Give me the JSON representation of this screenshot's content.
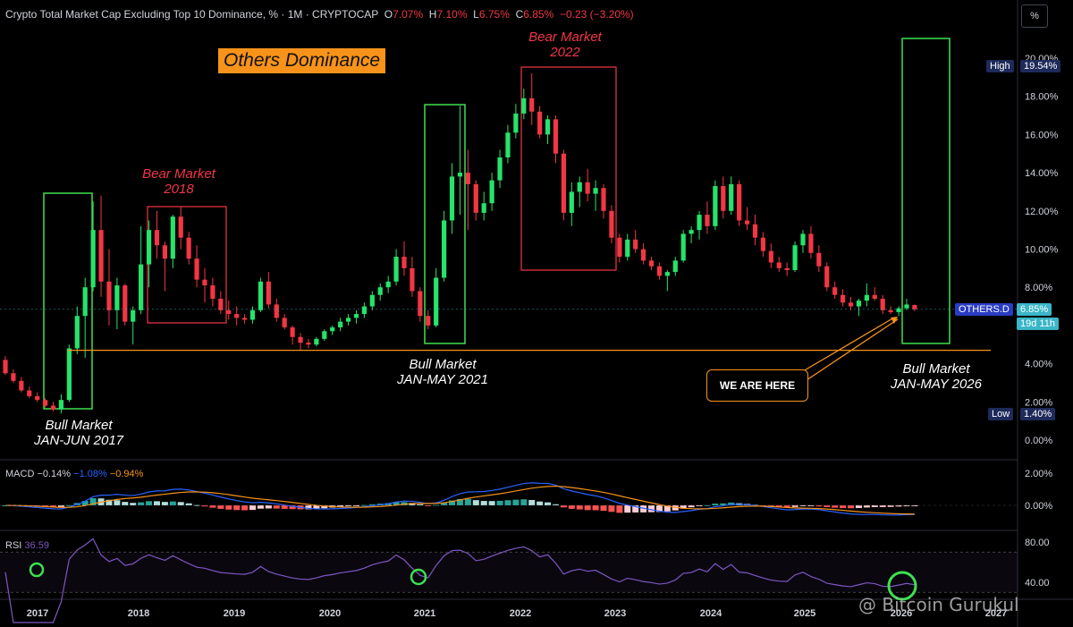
{
  "header": {
    "symbol": "Crypto Total Market Cap Excluding Top 10 Dominance, % · 1M · CRYPTOCAP",
    "o_label": "O",
    "o": "7.07%",
    "h_label": "H",
    "h": "7.10%",
    "l_label": "L",
    "l": "6.75%",
    "c_label": "C",
    "c": "6.85%",
    "change": "−0.23 (−3.20%)"
  },
  "scale_button": "%",
  "title_badge": "Others Dominance",
  "annotations": {
    "bull_2017": [
      "Bull Market",
      "JAN-JUN 2017"
    ],
    "bear_2018": [
      "Bear Market",
      "2018"
    ],
    "bull_2021": [
      "Bull Market",
      "JAN-MAY 2021"
    ],
    "bear_2022": [
      "Bear Market",
      "2022"
    ],
    "bull_2026": [
      "Bull Market",
      "JAN-MAY 2026"
    ],
    "we_are_here": "WE ARE HERE"
  },
  "price_tags": {
    "high_label": "High",
    "high_value": "19.54%",
    "low_label": "Low",
    "low_value": "1.40%",
    "symbol_tag": "OTHERS.D",
    "last_value": "6.85%",
    "countdown": "19d 11h"
  },
  "macd_legend": {
    "name": "MACD",
    "v1": "−0.14%",
    "v2": "−1.08%",
    "v3": "−0.94%"
  },
  "rsi_legend": {
    "name": "RSI",
    "v": "36.59"
  },
  "watermark": "@ Bitcoin Gurukul",
  "colors": {
    "up": "#26e36b",
    "down": "#f23645",
    "bull_box": "#3ee04f",
    "bear_box": "#f23645",
    "support": "#f7931a",
    "macd_line": "#2962ff",
    "signal_line": "#f7931a",
    "rsi_line": "#7e57c2"
  },
  "chart_data": {
    "type": "candlestick",
    "title": "Crypto Total Market Cap Excluding Top 10 Dominance, % · 1M · CRYPTOCAP",
    "ylim": [
      0,
      21
    ],
    "y_ticks": [
      "0.00%",
      "2.00%",
      "4.00%",
      "6.00%",
      "8.00%",
      "10.00%",
      "12.00%",
      "14.00%",
      "16.00%",
      "18.00%",
      "20.00%"
    ],
    "x_ticks": [
      "2017",
      "2018",
      "2019",
      "2020",
      "2021",
      "2022",
      "2023",
      "2024",
      "2025",
      "2026",
      "2027"
    ],
    "support_level": 4.7,
    "candles": [
      {
        "o": 4.2,
        "h": 4.4,
        "l": 3.4,
        "c": 3.5
      },
      {
        "o": 3.5,
        "h": 3.7,
        "l": 3.0,
        "c": 3.1
      },
      {
        "o": 3.1,
        "h": 3.3,
        "l": 2.5,
        "c": 2.6
      },
      {
        "o": 2.6,
        "h": 2.8,
        "l": 2.2,
        "c": 2.3
      },
      {
        "o": 2.3,
        "h": 2.5,
        "l": 2.0,
        "c": 2.1
      },
      {
        "o": 2.1,
        "h": 2.2,
        "l": 1.7,
        "c": 1.8
      },
      {
        "o": 1.8,
        "h": 2.0,
        "l": 1.5,
        "c": 1.6
      },
      {
        "o": 1.6,
        "h": 2.4,
        "l": 1.4,
        "c": 2.1
      },
      {
        "o": 2.1,
        "h": 5.0,
        "l": 2.0,
        "c": 4.8
      },
      {
        "o": 4.8,
        "h": 7.0,
        "l": 4.5,
        "c": 6.5
      },
      {
        "o": 6.5,
        "h": 8.5,
        "l": 4.3,
        "c": 8.0
      },
      {
        "o": 8.0,
        "h": 12.5,
        "l": 7.8,
        "c": 11.0
      },
      {
        "o": 11.0,
        "h": 12.8,
        "l": 7.5,
        "c": 8.3
      },
      {
        "o": 8.3,
        "h": 10.0,
        "l": 6.0,
        "c": 6.8
      },
      {
        "o": 6.8,
        "h": 8.5,
        "l": 5.8,
        "c": 8.1
      },
      {
        "o": 8.1,
        "h": 8.2,
        "l": 6.0,
        "c": 6.2
      },
      {
        "o": 6.2,
        "h": 7.0,
        "l": 5.0,
        "c": 6.8
      },
      {
        "o": 6.8,
        "h": 11.2,
        "l": 6.6,
        "c": 9.2
      },
      {
        "o": 9.2,
        "h": 11.5,
        "l": 8.0,
        "c": 11.0
      },
      {
        "o": 11.0,
        "h": 12.0,
        "l": 9.5,
        "c": 10.2
      },
      {
        "o": 10.2,
        "h": 10.4,
        "l": 7.8,
        "c": 9.5
      },
      {
        "o": 9.5,
        "h": 11.8,
        "l": 9.0,
        "c": 11.7
      },
      {
        "o": 11.7,
        "h": 12.2,
        "l": 10.0,
        "c": 10.6
      },
      {
        "o": 10.6,
        "h": 10.9,
        "l": 9.2,
        "c": 9.5
      },
      {
        "o": 9.5,
        "h": 10.2,
        "l": 8.0,
        "c": 8.4
      },
      {
        "o": 8.4,
        "h": 9.0,
        "l": 7.2,
        "c": 8.1
      },
      {
        "o": 8.1,
        "h": 8.5,
        "l": 7.0,
        "c": 7.4
      },
      {
        "o": 7.4,
        "h": 7.8,
        "l": 6.6,
        "c": 6.8
      },
      {
        "o": 6.8,
        "h": 7.3,
        "l": 6.3,
        "c": 6.6
      },
      {
        "o": 6.6,
        "h": 7.0,
        "l": 6.0,
        "c": 6.4
      },
      {
        "o": 6.4,
        "h": 6.6,
        "l": 6.1,
        "c": 6.3
      },
      {
        "o": 6.3,
        "h": 7.0,
        "l": 6.1,
        "c": 6.8
      },
      {
        "o": 6.8,
        "h": 8.5,
        "l": 6.7,
        "c": 8.3
      },
      {
        "o": 8.3,
        "h": 8.8,
        "l": 6.9,
        "c": 7.1
      },
      {
        "o": 7.1,
        "h": 7.4,
        "l": 6.2,
        "c": 6.4
      },
      {
        "o": 6.4,
        "h": 6.6,
        "l": 5.8,
        "c": 5.9
      },
      {
        "o": 5.9,
        "h": 6.0,
        "l": 5.0,
        "c": 5.4
      },
      {
        "o": 5.4,
        "h": 5.6,
        "l": 4.7,
        "c": 5.1
      },
      {
        "o": 5.1,
        "h": 5.3,
        "l": 4.8,
        "c": 5.0
      },
      {
        "o": 5.0,
        "h": 5.4,
        "l": 4.9,
        "c": 5.3
      },
      {
        "o": 5.3,
        "h": 5.8,
        "l": 5.2,
        "c": 5.7
      },
      {
        "o": 5.7,
        "h": 6.0,
        "l": 5.5,
        "c": 5.9
      },
      {
        "o": 5.9,
        "h": 6.4,
        "l": 5.7,
        "c": 6.2
      },
      {
        "o": 6.2,
        "h": 6.6,
        "l": 6.0,
        "c": 6.4
      },
      {
        "o": 6.4,
        "h": 6.8,
        "l": 6.1,
        "c": 6.6
      },
      {
        "o": 6.6,
        "h": 7.2,
        "l": 6.4,
        "c": 7.0
      },
      {
        "o": 7.0,
        "h": 7.8,
        "l": 6.8,
        "c": 7.6
      },
      {
        "o": 7.6,
        "h": 8.2,
        "l": 7.3,
        "c": 8.0
      },
      {
        "o": 8.0,
        "h": 8.6,
        "l": 7.7,
        "c": 8.3
      },
      {
        "o": 8.3,
        "h": 10.0,
        "l": 8.1,
        "c": 9.6
      },
      {
        "o": 9.6,
        "h": 10.4,
        "l": 8.6,
        "c": 9.0
      },
      {
        "o": 9.0,
        "h": 9.6,
        "l": 7.5,
        "c": 7.8
      },
      {
        "o": 7.8,
        "h": 8.0,
        "l": 6.2,
        "c": 6.5
      },
      {
        "o": 6.5,
        "h": 6.8,
        "l": 5.8,
        "c": 6.0
      },
      {
        "o": 6.0,
        "h": 9.0,
        "l": 5.9,
        "c": 8.5
      },
      {
        "o": 8.5,
        "h": 12.0,
        "l": 8.3,
        "c": 11.5
      },
      {
        "o": 11.5,
        "h": 14.5,
        "l": 10.8,
        "c": 13.8
      },
      {
        "o": 13.8,
        "h": 17.5,
        "l": 11.8,
        "c": 14.0
      },
      {
        "o": 14.0,
        "h": 15.2,
        "l": 11.0,
        "c": 13.4
      },
      {
        "o": 13.4,
        "h": 13.6,
        "l": 11.5,
        "c": 11.9
      },
      {
        "o": 11.9,
        "h": 13.0,
        "l": 11.5,
        "c": 12.4
      },
      {
        "o": 12.4,
        "h": 14.0,
        "l": 12.0,
        "c": 13.6
      },
      {
        "o": 13.6,
        "h": 15.2,
        "l": 13.2,
        "c": 14.8
      },
      {
        "o": 14.8,
        "h": 16.5,
        "l": 14.5,
        "c": 16.1
      },
      {
        "o": 16.1,
        "h": 17.6,
        "l": 15.8,
        "c": 17.1
      },
      {
        "o": 17.1,
        "h": 18.4,
        "l": 16.8,
        "c": 17.9
      },
      {
        "o": 17.9,
        "h": 19.2,
        "l": 16.5,
        "c": 17.2
      },
      {
        "o": 17.2,
        "h": 17.5,
        "l": 15.8,
        "c": 16.0
      },
      {
        "o": 16.0,
        "h": 17.0,
        "l": 15.5,
        "c": 16.8
      },
      {
        "o": 16.8,
        "h": 17.0,
        "l": 14.5,
        "c": 15.0
      },
      {
        "o": 15.0,
        "h": 15.2,
        "l": 11.5,
        "c": 11.9
      },
      {
        "o": 11.9,
        "h": 13.5,
        "l": 11.2,
        "c": 13.0
      },
      {
        "o": 13.0,
        "h": 13.8,
        "l": 12.2,
        "c": 13.5
      },
      {
        "o": 13.5,
        "h": 14.2,
        "l": 12.5,
        "c": 12.9
      },
      {
        "o": 12.9,
        "h": 13.6,
        "l": 12.0,
        "c": 13.2
      },
      {
        "o": 13.2,
        "h": 13.4,
        "l": 11.6,
        "c": 12.0
      },
      {
        "o": 12.0,
        "h": 12.3,
        "l": 10.3,
        "c": 10.6
      },
      {
        "o": 10.6,
        "h": 10.8,
        "l": 9.3,
        "c": 9.6
      },
      {
        "o": 9.6,
        "h": 10.8,
        "l": 9.4,
        "c": 10.5
      },
      {
        "o": 10.5,
        "h": 11.0,
        "l": 9.8,
        "c": 10.0
      },
      {
        "o": 10.0,
        "h": 10.3,
        "l": 9.2,
        "c": 9.4
      },
      {
        "o": 9.4,
        "h": 9.6,
        "l": 8.9,
        "c": 9.1
      },
      {
        "o": 9.1,
        "h": 9.3,
        "l": 8.4,
        "c": 8.6
      },
      {
        "o": 8.6,
        "h": 8.9,
        "l": 7.8,
        "c": 8.8
      },
      {
        "o": 8.8,
        "h": 9.6,
        "l": 8.6,
        "c": 9.4
      },
      {
        "o": 9.4,
        "h": 11.0,
        "l": 9.3,
        "c": 10.8
      },
      {
        "o": 10.8,
        "h": 11.2,
        "l": 10.3,
        "c": 11.0
      },
      {
        "o": 11.0,
        "h": 12.0,
        "l": 10.5,
        "c": 11.8
      },
      {
        "o": 11.8,
        "h": 12.5,
        "l": 10.8,
        "c": 11.2
      },
      {
        "o": 11.2,
        "h": 13.6,
        "l": 11.0,
        "c": 13.3
      },
      {
        "o": 13.3,
        "h": 13.8,
        "l": 11.6,
        "c": 12.0
      },
      {
        "o": 12.0,
        "h": 13.8,
        "l": 11.8,
        "c": 13.4
      },
      {
        "o": 13.4,
        "h": 13.6,
        "l": 11.2,
        "c": 11.5
      },
      {
        "o": 11.5,
        "h": 12.2,
        "l": 11.0,
        "c": 11.3
      },
      {
        "o": 11.3,
        "h": 11.8,
        "l": 10.2,
        "c": 10.6
      },
      {
        "o": 10.6,
        "h": 10.9,
        "l": 9.6,
        "c": 9.9
      },
      {
        "o": 9.9,
        "h": 10.3,
        "l": 9.0,
        "c": 9.3
      },
      {
        "o": 9.3,
        "h": 9.6,
        "l": 8.8,
        "c": 9.0
      },
      {
        "o": 9.0,
        "h": 9.3,
        "l": 8.6,
        "c": 8.9
      },
      {
        "o": 8.9,
        "h": 10.4,
        "l": 8.8,
        "c": 10.2
      },
      {
        "o": 10.2,
        "h": 11.0,
        "l": 9.8,
        "c": 10.8
      },
      {
        "o": 10.8,
        "h": 11.2,
        "l": 9.5,
        "c": 9.8
      },
      {
        "o": 9.8,
        "h": 10.2,
        "l": 8.8,
        "c": 9.1
      },
      {
        "o": 9.1,
        "h": 9.3,
        "l": 7.8,
        "c": 8.0
      },
      {
        "o": 8.0,
        "h": 8.3,
        "l": 7.4,
        "c": 7.6
      },
      {
        "o": 7.6,
        "h": 7.9,
        "l": 7.0,
        "c": 7.2
      },
      {
        "o": 7.2,
        "h": 7.5,
        "l": 6.8,
        "c": 7.0
      },
      {
        "o": 7.0,
        "h": 7.4,
        "l": 6.5,
        "c": 7.3
      },
      {
        "o": 7.3,
        "h": 8.2,
        "l": 7.0,
        "c": 7.6
      },
      {
        "o": 7.6,
        "h": 8.0,
        "l": 7.3,
        "c": 7.4
      },
      {
        "o": 7.4,
        "h": 7.6,
        "l": 6.6,
        "c": 6.8
      },
      {
        "o": 6.8,
        "h": 7.0,
        "l": 6.6,
        "c": 6.7
      },
      {
        "o": 6.7,
        "h": 7.0,
        "l": 6.5,
        "c": 6.9
      },
      {
        "o": 6.9,
        "h": 7.4,
        "l": 6.8,
        "c": 7.1
      },
      {
        "o": 7.07,
        "h": 7.1,
        "l": 6.75,
        "c": 6.85
      }
    ],
    "high": 19.54,
    "low": 1.4,
    "last": 6.85,
    "macd": {
      "ylim": [
        -1.5,
        2.6
      ],
      "y_ticks": [
        "2.00%",
        "0.00%"
      ],
      "legend": [
        "−0.14%",
        "−1.08%",
        "−0.94%"
      ]
    },
    "rsi": {
      "ylim": [
        25,
        90
      ],
      "y_ticks": [
        "80.00",
        "40.00"
      ],
      "last": 36.59
    }
  }
}
